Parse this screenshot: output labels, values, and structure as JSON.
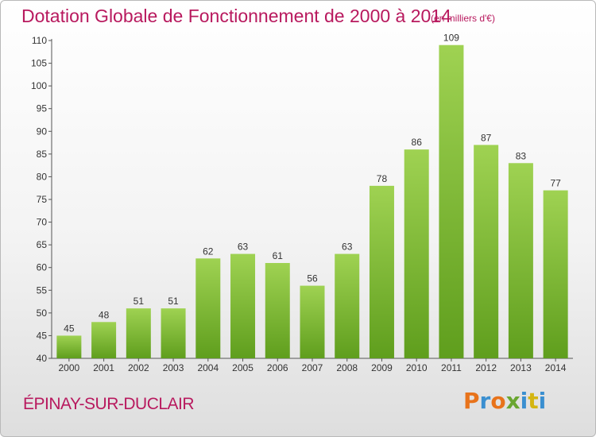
{
  "header": {
    "title": "Dotation Globale de Fonctionnement de 2000 à 2014",
    "unit": "(en milliers d'€)"
  },
  "footer": {
    "commune": "ÉPINAY-SUR-DUCLAIR",
    "logo_text": "Proxiti",
    "logo_colors": [
      "#e8731b",
      "#3a8fd0",
      "#e8731b",
      "#6aa630",
      "#3a8fd0",
      "#d4b512",
      "#3a8fd0"
    ]
  },
  "chart_data": {
    "type": "bar",
    "title": "Dotation Globale de Fonctionnement de 2000 à 2014",
    "subtitle": "(en milliers d'€)",
    "xlabel": "",
    "ylabel": "",
    "categories": [
      "2000",
      "2001",
      "2002",
      "2003",
      "2004",
      "2005",
      "2006",
      "2007",
      "2008",
      "2009",
      "2010",
      "2011",
      "2012",
      "2013",
      "2014"
    ],
    "values": [
      45,
      48,
      51,
      51,
      62,
      63,
      61,
      56,
      63,
      78,
      86,
      109,
      87,
      83,
      77
    ],
    "ylim": [
      40,
      110
    ],
    "yticks": [
      40,
      45,
      50,
      55,
      60,
      65,
      70,
      75,
      80,
      85,
      90,
      95,
      100,
      105,
      110
    ],
    "grid": false,
    "bar_color_top": "#9fd252",
    "bar_color_bottom": "#5f9e1d"
  }
}
